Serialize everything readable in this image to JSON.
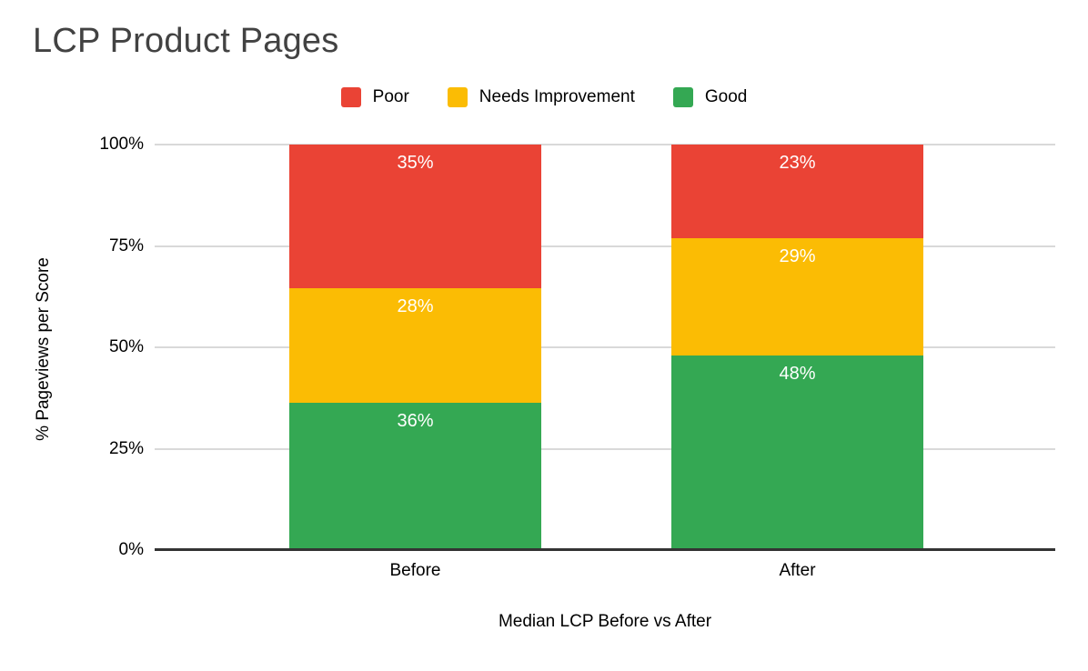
{
  "title": "LCP Product Pages",
  "legend": {
    "items": [
      {
        "label": "Poor",
        "color": "#EA4335"
      },
      {
        "label": "Needs Improvement",
        "color": "#FBBC04"
      },
      {
        "label": "Good",
        "color": "#34A853"
      }
    ]
  },
  "chart_data": {
    "type": "bar",
    "subtype": "stacked-100-percent",
    "title": "LCP Product Pages",
    "categories": [
      "Before",
      "After"
    ],
    "series": [
      {
        "name": "Good",
        "color": "#34A853",
        "values": [
          36,
          48
        ]
      },
      {
        "name": "Needs Improvement",
        "color": "#FBBC04",
        "values": [
          28,
          29
        ]
      },
      {
        "name": "Poor",
        "color": "#EA4335",
        "values": [
          35,
          23
        ]
      }
    ],
    "data_labels": {
      "Before": {
        "Poor": "35%",
        "Needs Improvement": "28%",
        "Good": "36%"
      },
      "After": {
        "Poor": "23%",
        "Needs Improvement": "29%",
        "Good": "48%"
      }
    },
    "xlabel": "Median LCP Before vs After",
    "ylabel": "% Pageviews per Score",
    "y_ticks": [
      "0%",
      "25%",
      "50%",
      "75%",
      "100%"
    ],
    "ylim": [
      0,
      100
    ],
    "grid": true,
    "gridline_color": "#d9d9d9",
    "axis_line_color": "#333333",
    "legend_position": "top",
    "data_label_color": "#ffffff"
  }
}
